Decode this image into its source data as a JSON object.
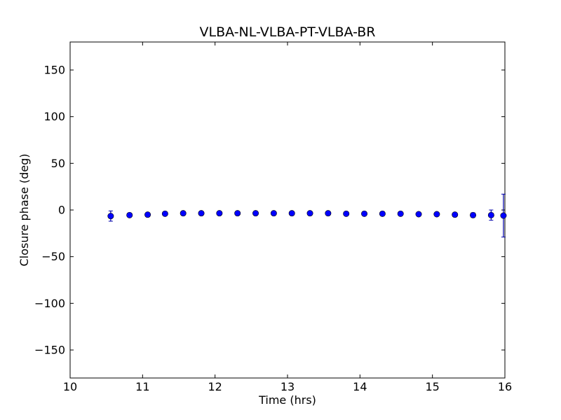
{
  "chart_data": {
    "type": "scatter",
    "title": "VLBA-NL-VLBA-PT-VLBA-BR",
    "xlabel": "Time (hrs)",
    "ylabel": "Closure phase (deg)",
    "xlim": [
      10,
      16
    ],
    "ylim": [
      -180,
      180
    ],
    "xticks": [
      10,
      11,
      12,
      13,
      14,
      15,
      16
    ],
    "yticks": [
      -150,
      -100,
      -50,
      0,
      50,
      100,
      150
    ],
    "xtick_labels": [
      "10",
      "11",
      "12",
      "13",
      "14",
      "15",
      "16"
    ],
    "ytick_labels": [
      "−150",
      "−100",
      "−50",
      "0",
      "50",
      "100",
      "150"
    ],
    "marker_color": "#0000ff",
    "errorbar_color": "#0000aa",
    "grid": false,
    "legend": "none",
    "points": [
      {
        "x": 10.56,
        "y": -6.5,
        "err": 5.5
      },
      {
        "x": 10.82,
        "y": -5.5,
        "err": 1.0
      },
      {
        "x": 11.07,
        "y": -5.0,
        "err": 1.0
      },
      {
        "x": 11.31,
        "y": -4.0,
        "err": 1.0
      },
      {
        "x": 11.56,
        "y": -3.5,
        "err": 1.0
      },
      {
        "x": 11.81,
        "y": -3.5,
        "err": 1.0
      },
      {
        "x": 12.06,
        "y": -3.5,
        "err": 1.0
      },
      {
        "x": 12.31,
        "y": -3.5,
        "err": 1.0
      },
      {
        "x": 12.56,
        "y": -3.5,
        "err": 1.0
      },
      {
        "x": 12.81,
        "y": -3.5,
        "err": 1.0
      },
      {
        "x": 13.06,
        "y": -3.5,
        "err": 1.0
      },
      {
        "x": 13.31,
        "y": -3.5,
        "err": 1.0
      },
      {
        "x": 13.56,
        "y": -3.5,
        "err": 1.0
      },
      {
        "x": 13.81,
        "y": -4.0,
        "err": 1.0
      },
      {
        "x": 14.06,
        "y": -4.0,
        "err": 1.0
      },
      {
        "x": 14.31,
        "y": -4.0,
        "err": 1.0
      },
      {
        "x": 14.56,
        "y": -4.0,
        "err": 1.0
      },
      {
        "x": 14.81,
        "y": -4.5,
        "err": 1.0
      },
      {
        "x": 15.06,
        "y": -4.5,
        "err": 1.0
      },
      {
        "x": 15.31,
        "y": -5.0,
        "err": 1.5
      },
      {
        "x": 15.56,
        "y": -5.5,
        "err": 2.5
      },
      {
        "x": 15.81,
        "y": -5.5,
        "err": 5.5
      },
      {
        "x": 15.98,
        "y": -6.0,
        "err": 23.0
      }
    ]
  }
}
